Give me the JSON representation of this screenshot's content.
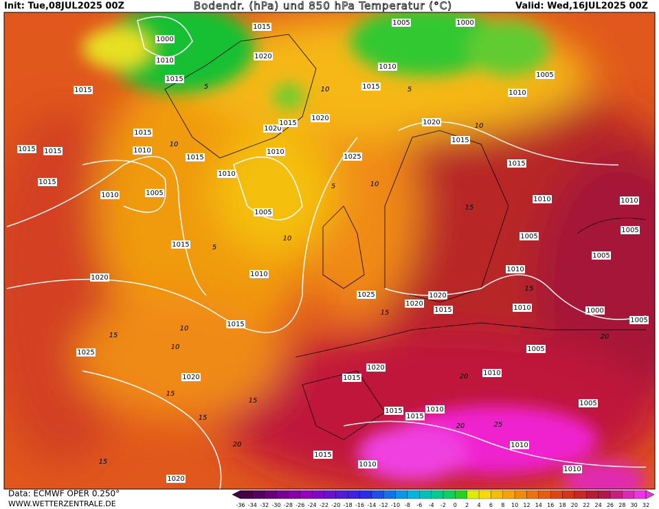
{
  "header": {
    "init": "Init: Tue,08JUL2025 00Z",
    "title": "Bodendr. (hPa) und 850 hPa Temperatur (°C)",
    "valid": "Valid: Wed,16JUL2025 00Z"
  },
  "isobar_labels": [
    1000,
    1015,
    1005,
    1000,
    1010,
    1020,
    1010,
    1015,
    1015,
    1005,
    1015,
    1010,
    1015,
    1020,
    1020,
    1020,
    1015,
    1015,
    1015,
    1015,
    1010,
    1010,
    1015,
    1025,
    1015,
    1010,
    1015,
    1005,
    1010,
    1010,
    1010,
    1005,
    1005,
    1005,
    1015,
    1005,
    1010,
    1020,
    1010,
    1025,
    1020,
    1020,
    1015,
    1010,
    1000,
    1005,
    1015,
    1005,
    1025,
    1020,
    1015,
    1010,
    1020,
    1005,
    1015,
    1015,
    1010,
    1010,
    1015,
    1010,
    1010,
    1020
  ],
  "temperature_labels": [
    5,
    10,
    5,
    10,
    10,
    5,
    10,
    15,
    5,
    10,
    15,
    10,
    15,
    15,
    10,
    15,
    15,
    20,
    15,
    20,
    15,
    20,
    25,
    20
  ],
  "colorbar": {
    "labels": [
      -36,
      -34,
      -32,
      -30,
      -28,
      -26,
      -24,
      -22,
      -20,
      -18,
      -16,
      -14,
      -12,
      -10,
      -8,
      -6,
      -4,
      -2,
      0,
      2,
      4,
      6,
      8,
      10,
      12,
      14,
      16,
      18,
      20,
      22,
      24,
      26,
      28,
      30,
      32
    ]
  },
  "footer": {
    "source": "Data: ECMWF OPER 0.250°",
    "website": "WWW.WETTERZENTRALE.DE"
  }
}
